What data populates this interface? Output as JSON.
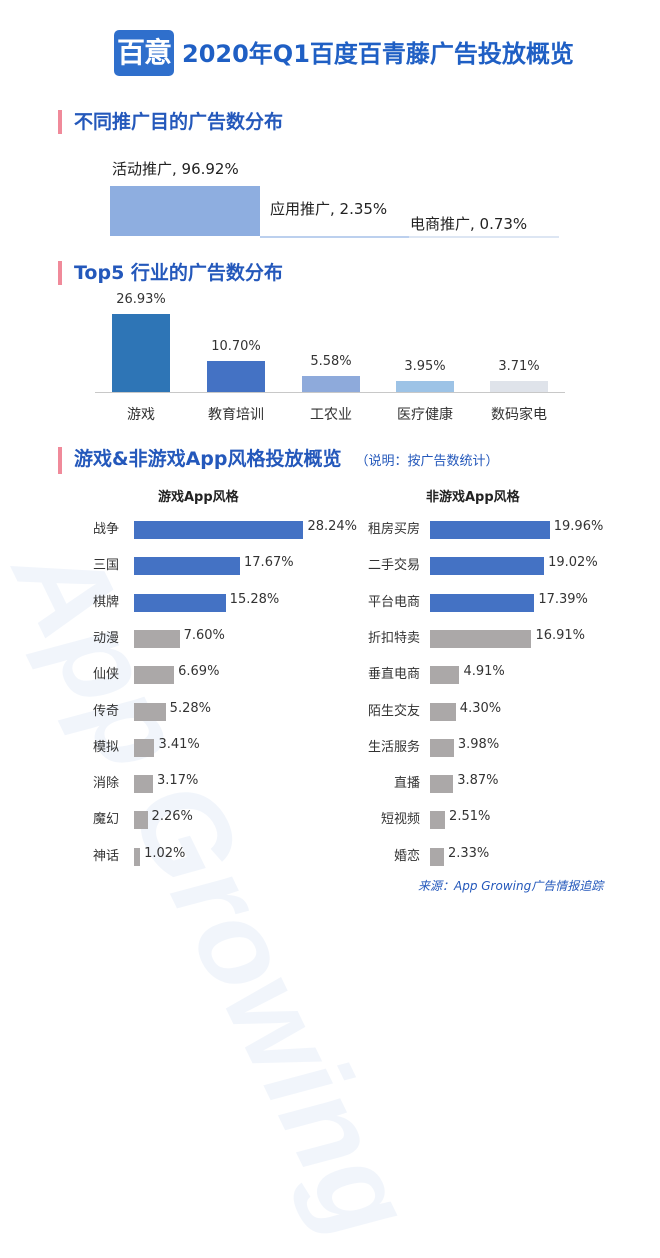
{
  "header": {
    "logo_text": "百意",
    "title": "2020年Q1百度百青藤广告投放概览"
  },
  "watermark": "App Growing",
  "source": "来源：App Growing广告情报追踪",
  "colors": {
    "step1": "#8eaee0",
    "step2": "#bcd0ee",
    "step3": "#dde6f3",
    "top5": [
      "#2e75b6",
      "#4472c4",
      "#8eaadb",
      "#9dc3e6",
      "#dfe3ea"
    ],
    "blue_bar": "#4472c4",
    "gray_bar": "#aba8a8"
  },
  "chart_data": [
    {
      "type": "bar",
      "title": "不同推广目的广告数分布",
      "categories": [
        "活动推广",
        "应用推广",
        "电商推广"
      ],
      "values": [
        96.92,
        2.35,
        0.73
      ],
      "labels": [
        "活动推广, 96.92%",
        "应用推广, 2.35%",
        "电商推广, 0.73%"
      ]
    },
    {
      "type": "bar",
      "title": "Top5 行业的广告数分布",
      "categories": [
        "游戏",
        "教育培训",
        "工农业",
        "医疗健康",
        "数码家电"
      ],
      "values": [
        26.93,
        10.7,
        5.58,
        3.95,
        3.71
      ],
      "labels": [
        "26.93%",
        "10.70%",
        "5.58%",
        "3.95%",
        "3.71%"
      ],
      "ylim": [
        0,
        26.93
      ]
    },
    {
      "type": "bar",
      "title": "游戏&非游戏App风格投放概览",
      "note": "（说明：按广告数统计）",
      "panels": [
        {
          "name": "游戏App风格",
          "categories": [
            "战争",
            "三国",
            "棋牌",
            "动漫",
            "仙侠",
            "传奇",
            "模拟",
            "消除",
            "魔幻",
            "神话"
          ],
          "values": [
            28.24,
            17.67,
            15.28,
            7.6,
            6.69,
            5.28,
            3.41,
            3.17,
            2.26,
            1.02
          ],
          "labels": [
            "28.24%",
            "17.67%",
            "15.28%",
            "7.60%",
            "6.69%",
            "5.28%",
            "3.41%",
            "3.17%",
            "2.26%",
            "1.02%"
          ],
          "highlight_count": 3
        },
        {
          "name": "非游戏App风格",
          "categories": [
            "租房买房",
            "二手交易",
            "平台电商",
            "折扣特卖",
            "垂直电商",
            "陌生交友",
            "生活服务",
            "直播",
            "短视频",
            "婚恋"
          ],
          "values": [
            19.96,
            19.02,
            17.39,
            16.91,
            4.91,
            4.3,
            3.98,
            3.87,
            2.51,
            2.33
          ],
          "labels": [
            "19.96%",
            "19.02%",
            "17.39%",
            "16.91%",
            "4.91%",
            "4.30%",
            "3.98%",
            "3.87%",
            "2.51%",
            "2.33%"
          ],
          "highlight_count": 3
        }
      ]
    }
  ]
}
